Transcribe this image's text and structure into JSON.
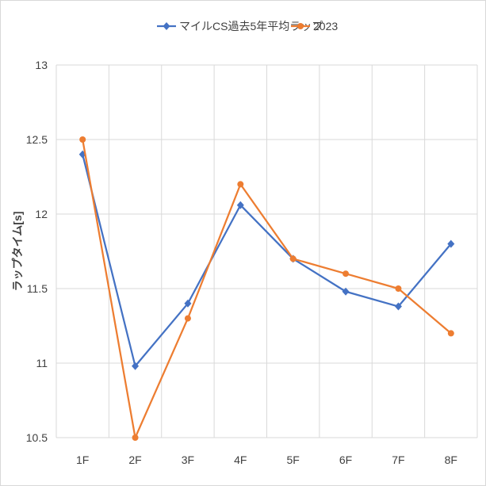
{
  "chart_data": {
    "type": "line",
    "title": "",
    "xlabel": "",
    "ylabel": "ラップタイム[s]",
    "categories": [
      "1F",
      "2F",
      "3F",
      "4F",
      "5F",
      "6F",
      "7F",
      "8F"
    ],
    "y_ticks": [
      "13",
      "12.5",
      "12",
      "11.5",
      "11",
      "10.5"
    ],
    "ylim": [
      10.5,
      13
    ],
    "grid": true,
    "legend_position": "top",
    "series": [
      {
        "name": "マイルCS過去5年平均ラップ",
        "color": "#4472C4",
        "marker": "diamond",
        "values": [
          12.4,
          10.98,
          11.4,
          12.06,
          11.7,
          11.48,
          11.38,
          11.8
        ]
      },
      {
        "name": "2023",
        "color": "#ED7D31",
        "marker": "circle",
        "values": [
          12.5,
          10.5,
          11.3,
          12.2,
          11.7,
          11.6,
          11.5,
          11.2
        ]
      }
    ]
  }
}
